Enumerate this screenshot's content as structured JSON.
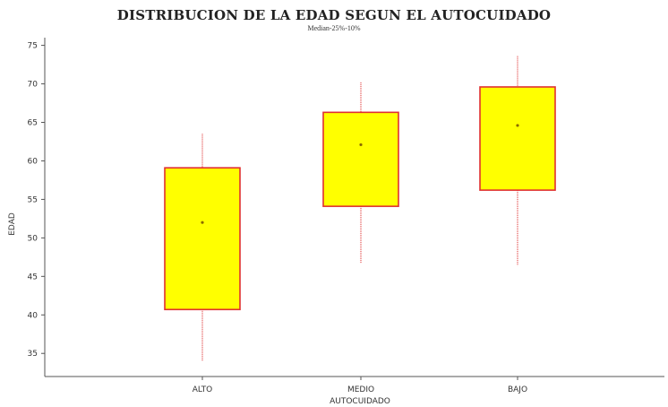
{
  "chart_data": {
    "type": "box",
    "title": "DISTRIBUCION DE LA EDAD SEGUN EL AUTOCUIDADO",
    "subtitle": "Median-25%-10%",
    "xlabel": "AUTOCUIDADO",
    "ylabel": "EDAD",
    "ylim": [
      32,
      76
    ],
    "yticks": [
      "35",
      "40",
      "45",
      "50",
      "55",
      "60",
      "65",
      "70",
      "75"
    ],
    "grid": false,
    "categories": [
      "ALTO",
      "MEDIO",
      "BAJO"
    ],
    "boxes": [
      {
        "category": "ALTO",
        "whisker_low": 34,
        "q1": 40.7,
        "median": 52.0,
        "q3": 59.1,
        "whisker_high": 63.5
      },
      {
        "category": "MEDIO",
        "whisker_low": 46.7,
        "q1": 54.1,
        "median": 62.1,
        "q3": 66.3,
        "whisker_high": 70.2
      },
      {
        "category": "BAJO",
        "whisker_low": 46.4,
        "q1": 56.2,
        "median": 64.6,
        "q3": 69.6,
        "whisker_high": 73.6
      }
    ],
    "colors": {
      "box_fill": "#ffff00",
      "box_edge": "#e03030",
      "whisker": "#e04040",
      "axis": "#555555"
    }
  }
}
